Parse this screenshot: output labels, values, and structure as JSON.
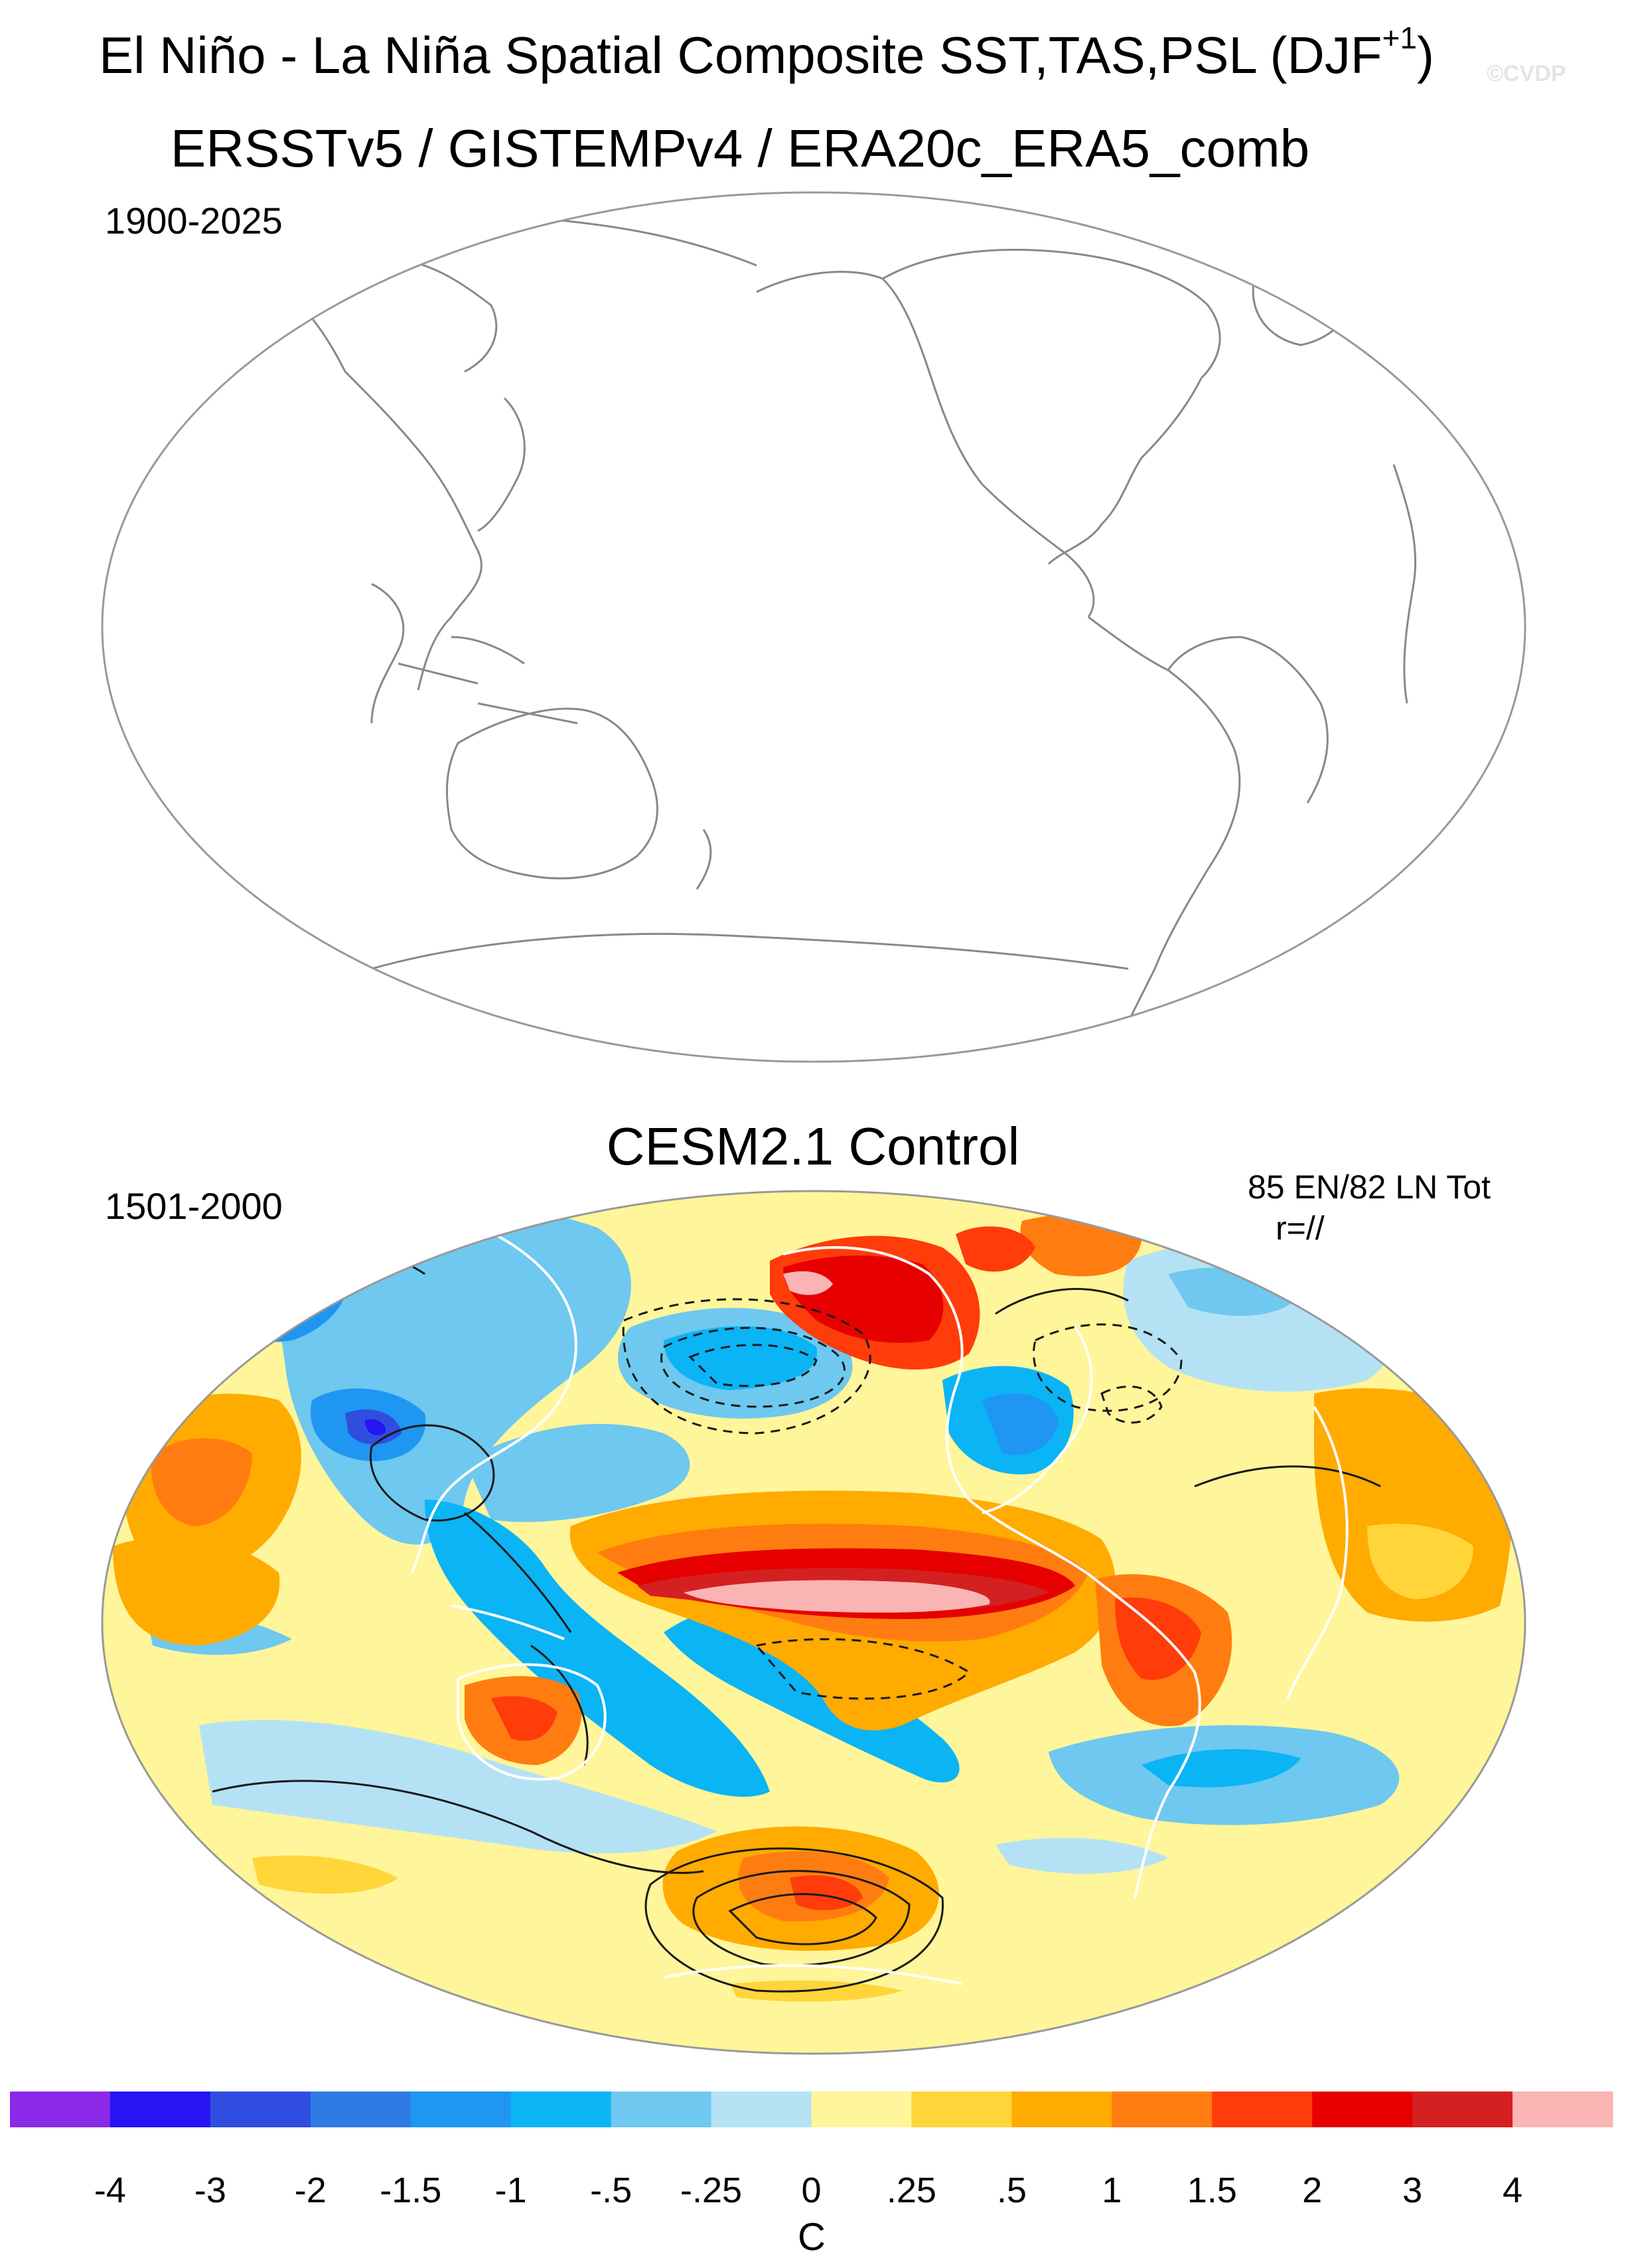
{
  "header": {
    "title_main": "El Niño - La Niña Spatial Composite SST,TAS,PSL (DJF",
    "title_superscript": "+1",
    "title_close": ")",
    "watermark": "©CVDP"
  },
  "top_panel": {
    "title": "ERSSTv5 / GISTEMPv4 / ERA20c_ERA5_comb",
    "years": "1900-2025"
  },
  "bottom_panel": {
    "title": "CESM2.1 Control",
    "years": "1501-2000",
    "event_counts": "85 EN/82 LN Tot",
    "pattern_correlation": "r=//"
  },
  "colorbar": {
    "labels": [
      "-4",
      "-3",
      "-2",
      "-1.5",
      "-1",
      "-.5",
      "-.25",
      "0",
      ".25",
      ".5",
      "1",
      "1.5",
      "2",
      "3",
      "4"
    ],
    "colors": [
      "#8a2ae8",
      "#2614f2",
      "#2f4ee0",
      "#2f7be6",
      "#1e96f2",
      "#0ab4f5",
      "#6ec8ef",
      "#b4e2f4",
      "#fff59a",
      "#ffd53a",
      "#ffab00",
      "#ff7d10",
      "#ff3c0a",
      "#e60000",
      "#d42020",
      "#fab4b4"
    ],
    "units": "C"
  },
  "map_colors": {
    "ocean_base": "#fff59a",
    "land_outline": "#888888",
    "map_border": "#999999",
    "contour": "#1a1a1a"
  }
}
